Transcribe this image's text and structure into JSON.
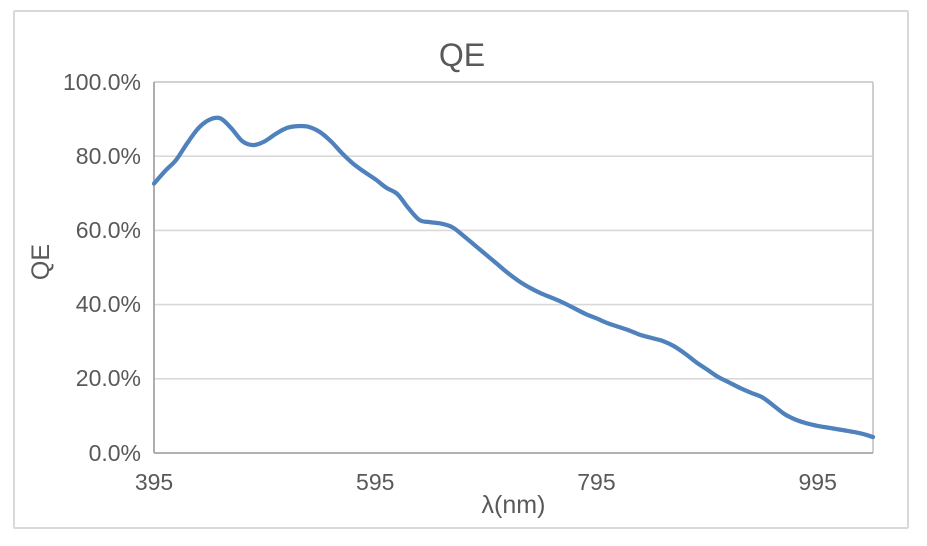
{
  "chart": {
    "title": "QE",
    "colors": {
      "line": "#4f81bd",
      "text": "#595959",
      "gridline": "#d9d9d9",
      "axis": "#a6a6a6",
      "plot_border": "#c3c3c3",
      "chart_border": "#d9d9d9",
      "background": "#ffffff"
    }
  },
  "chart_data": {
    "type": "line",
    "title": "QE",
    "xlabel": "λ(nm)",
    "ylabel": "QE",
    "legend": "none",
    "grid": "horizontal",
    "smooth": true,
    "xlim": [
      395,
      1045
    ],
    "ylim": [
      0,
      100
    ],
    "x_ticks": [
      395,
      595,
      795,
      995
    ],
    "y_tick_values": [
      0,
      20,
      40,
      60,
      80,
      100
    ],
    "y_tick_labels": [
      "0.0%",
      "20.0%",
      "40.0%",
      "60.0%",
      "80.0%",
      "100.0%"
    ],
    "series": [
      {
        "name": "QE",
        "x": [
          395,
          405,
          415,
          425,
          435,
          445,
          455,
          465,
          475,
          485,
          495,
          505,
          515,
          525,
          535,
          545,
          555,
          565,
          575,
          585,
          595,
          605,
          615,
          625,
          635,
          645,
          655,
          665,
          675,
          685,
          695,
          705,
          715,
          725,
          735,
          745,
          755,
          765,
          775,
          785,
          795,
          805,
          815,
          825,
          835,
          845,
          855,
          865,
          875,
          885,
          895,
          905,
          915,
          925,
          935,
          945,
          955,
          965,
          975,
          985,
          995,
          1005,
          1015,
          1025,
          1035,
          1045
        ],
        "y": [
          72.6,
          76.0,
          79.0,
          83.5,
          87.5,
          89.8,
          90.2,
          87.5,
          84.0,
          83.0,
          84.0,
          86.0,
          87.6,
          88.1,
          87.9,
          86.5,
          84.0,
          80.8,
          78.0,
          75.8,
          73.8,
          71.5,
          69.8,
          66.0,
          62.8,
          62.2,
          61.8,
          60.8,
          58.5,
          56.0,
          53.5,
          51.0,
          48.5,
          46.3,
          44.5,
          43.0,
          41.8,
          40.5,
          39.0,
          37.5,
          36.3,
          35.0,
          34.0,
          33.0,
          31.8,
          31.0,
          30.2,
          28.8,
          26.8,
          24.5,
          22.5,
          20.5,
          19.0,
          17.5,
          16.2,
          15.0,
          12.8,
          10.5,
          9.0,
          8.0,
          7.3,
          6.8,
          6.3,
          5.8,
          5.2,
          4.3
        ]
      }
    ]
  }
}
